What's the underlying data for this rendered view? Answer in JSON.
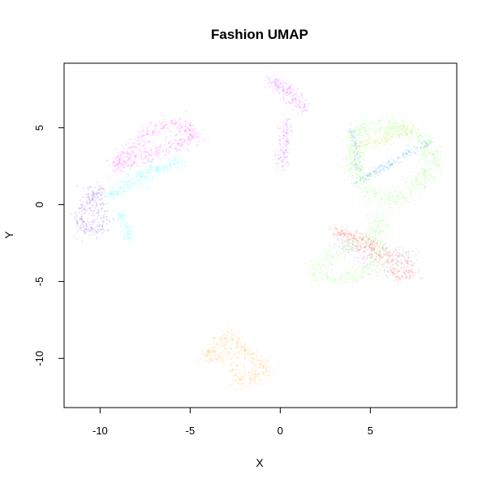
{
  "chart_data": {
    "type": "scatter",
    "title": "Fashion UMAP",
    "xlabel": "X",
    "ylabel": "Y",
    "xlim": [
      -12,
      9.8
    ],
    "ylim": [
      -13.2,
      9.2
    ],
    "x_ticks": [
      -10,
      -5,
      0,
      5
    ],
    "y_ticks": [
      -10,
      -5,
      0,
      5
    ],
    "grid": false,
    "legend": "none",
    "point_alpha": 0.12,
    "series": [
      {
        "color": "#ff00ff",
        "regions": [
          {
            "points": [
              [
                -9.2,
                2.5
              ],
              [
                -8.2,
                3.8
              ],
              [
                -7.2,
                4.8
              ],
              [
                -6.3,
                5.3
              ],
              [
                -5.2,
                5.1
              ],
              [
                -4.6,
                4.4
              ]
            ],
            "spread": 0.45,
            "count": 520
          }
        ]
      },
      {
        "color": "#cc33ff",
        "regions": [
          {
            "points": [
              [
                -0.6,
                8.1
              ],
              [
                0.3,
                7.7
              ],
              [
                1.0,
                6.8
              ],
              [
                1.4,
                6.2
              ]
            ],
            "spread": 0.35,
            "count": 220
          },
          {
            "points": [
              [
                0.4,
                5.6
              ],
              [
                0.2,
                4.2
              ],
              [
                0.0,
                3.0
              ],
              [
                0.1,
                2.3
              ]
            ],
            "spread": 0.3,
            "count": 160
          }
        ]
      },
      {
        "color": "#00ffff",
        "regions": [
          {
            "points": [
              [
                -9.5,
                0.5
              ],
              [
                -8.3,
                1.8
              ],
              [
                -6.8,
                2.4
              ],
              [
                -5.4,
                2.9
              ]
            ],
            "spread": 0.4,
            "count": 300
          },
          {
            "points": [
              [
                -8.9,
                -0.6
              ],
              [
                -8.5,
                -1.6
              ],
              [
                -8.3,
                -2.5
              ]
            ],
            "spread": 0.25,
            "count": 90
          }
        ]
      },
      {
        "color": "#5522cc",
        "regions": [
          {
            "points": [
              [
                -11.1,
                -0.7
              ],
              [
                -10.6,
                0.4
              ],
              [
                -10.1,
                0.9
              ],
              [
                -9.9,
                -1.6
              ],
              [
                -10.8,
                -1.8
              ]
            ],
            "spread": 0.45,
            "count": 300
          }
        ]
      },
      {
        "color": "#66ff33",
        "regions": [
          {
            "points": [
              [
                4.2,
                4.8
              ],
              [
                6.0,
                5.2
              ],
              [
                7.5,
                4.6
              ],
              [
                8.5,
                3.5
              ],
              [
                8.0,
                1.8
              ],
              [
                6.5,
                0.3
              ],
              [
                5.0,
                0.8
              ],
              [
                4.0,
                2.5
              ]
            ],
            "spread": 0.55,
            "count": 900
          },
          {
            "points": [
              [
                5.6,
                -0.8
              ],
              [
                4.8,
                -2.2
              ],
              [
                3.0,
                -3.2
              ],
              [
                1.7,
                -4.3
              ],
              [
                3.2,
                -5.0
              ],
              [
                5.2,
                -4.2
              ]
            ],
            "spread": 0.5,
            "count": 500
          }
        ]
      },
      {
        "color": "#b5e61d",
        "regions": [
          {
            "points": [
              [
                4.2,
                3.6
              ],
              [
                5.2,
                4.0
              ],
              [
                6.3,
                4.5
              ],
              [
                7.2,
                5.0
              ]
            ],
            "spread": 0.4,
            "count": 200
          }
        ]
      },
      {
        "color": "#3399cc",
        "regions": [
          {
            "points": [
              [
                4.0,
                1.3
              ],
              [
                5.5,
                2.2
              ],
              [
                7.0,
                3.4
              ],
              [
                8.3,
                4.1
              ]
            ],
            "spread": 0.25,
            "count": 220
          },
          {
            "points": [
              [
                4.0,
                5.0
              ],
              [
                4.3,
                3.5
              ],
              [
                4.4,
                2.2
              ]
            ],
            "spread": 0.2,
            "count": 90
          }
        ]
      },
      {
        "color": "#ff2222",
        "regions": [
          {
            "points": [
              [
                3.0,
                -1.6
              ],
              [
                4.5,
                -2.2
              ],
              [
                5.8,
                -3.1
              ],
              [
                7.0,
                -3.7
              ],
              [
                7.4,
                -4.6
              ],
              [
                6.3,
                -4.7
              ],
              [
                6.0,
                -3.8
              ]
            ],
            "spread": 0.4,
            "count": 420
          }
        ]
      },
      {
        "color": "#9999cc",
        "regions": [
          {
            "points": [
              [
                3.2,
                -2.5
              ],
              [
                4.4,
                -3.4
              ],
              [
                5.4,
                -4.2
              ],
              [
                6.8,
                -3.8
              ],
              [
                7.3,
                -3.2
              ]
            ],
            "spread": 0.45,
            "count": 250
          }
        ]
      },
      {
        "color": "#ff9900",
        "regions": [
          {
            "points": [
              [
                -4.2,
                -10.0
              ],
              [
                -3.2,
                -9.7
              ],
              [
                -2.6,
                -10.4
              ],
              [
                -2.2,
                -11.6
              ],
              [
                -1.2,
                -11.2
              ],
              [
                -0.7,
                -10.8
              ],
              [
                -3.0,
                -8.5
              ]
            ],
            "spread": 0.45,
            "count": 480
          }
        ]
      }
    ]
  }
}
